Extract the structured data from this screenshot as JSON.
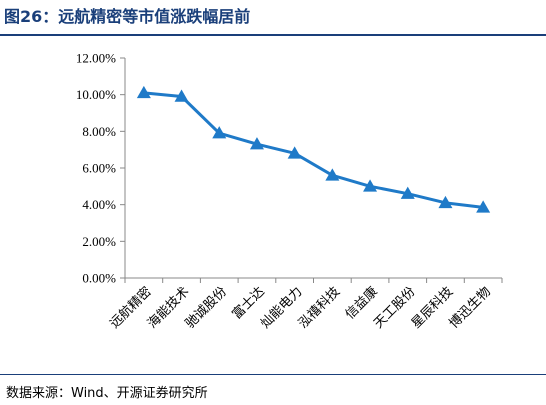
{
  "header": {
    "title": "图26：远航精密等市值涨跌幅居前"
  },
  "footer": {
    "source": "数据来源：Wind、开源证券研究所"
  },
  "colors": {
    "title": "#1a3f7a",
    "series": "#1f7ac8",
    "axis": "#888888"
  },
  "chart_data": {
    "type": "line",
    "title": "",
    "xlabel": "",
    "ylabel": "",
    "ylim": [
      0,
      12
    ],
    "yticks": [
      "0.00%",
      "2.00%",
      "4.00%",
      "6.00%",
      "8.00%",
      "10.00%",
      "12.00%"
    ],
    "grid": false,
    "legend": "none",
    "marker": "triangle",
    "categories": [
      "远航精密",
      "海能技术",
      "驰诚股份",
      "富士达",
      "灿能电力",
      "泓禧科技",
      "信益康",
      "天工股份",
      "星辰科技",
      "博迅生物"
    ],
    "series": [
      {
        "values": [
          10.1,
          9.9,
          7.9,
          7.3,
          6.8,
          5.6,
          5.0,
          4.6,
          4.1,
          3.85
        ]
      }
    ]
  }
}
